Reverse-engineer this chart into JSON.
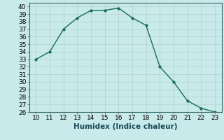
{
  "x": [
    10,
    11,
    12,
    13,
    14,
    15,
    16,
    17,
    18,
    19,
    20,
    21,
    22,
    23
  ],
  "y": [
    33,
    34,
    37,
    38.5,
    39.5,
    39.5,
    39.8,
    38.5,
    37.5,
    32,
    30,
    27.5,
    26.5,
    26
  ],
  "xlabel": "Humidex (Indice chaleur)",
  "xlim": [
    9.5,
    23.5
  ],
  "ylim": [
    26,
    40.5
  ],
  "xticks": [
    10,
    11,
    12,
    13,
    14,
    15,
    16,
    17,
    18,
    19,
    20,
    21,
    22,
    23
  ],
  "yticks": [
    26,
    27,
    28,
    29,
    30,
    31,
    32,
    33,
    34,
    35,
    36,
    37,
    38,
    39,
    40
  ],
  "line_color": "#1a6b5a",
  "marker_color": "#1a6b5a",
  "bg_color": "#c8eaea",
  "grid_color": "#b8d4d4",
  "tick_fontsize": 6.5,
  "label_fontsize": 7.5
}
